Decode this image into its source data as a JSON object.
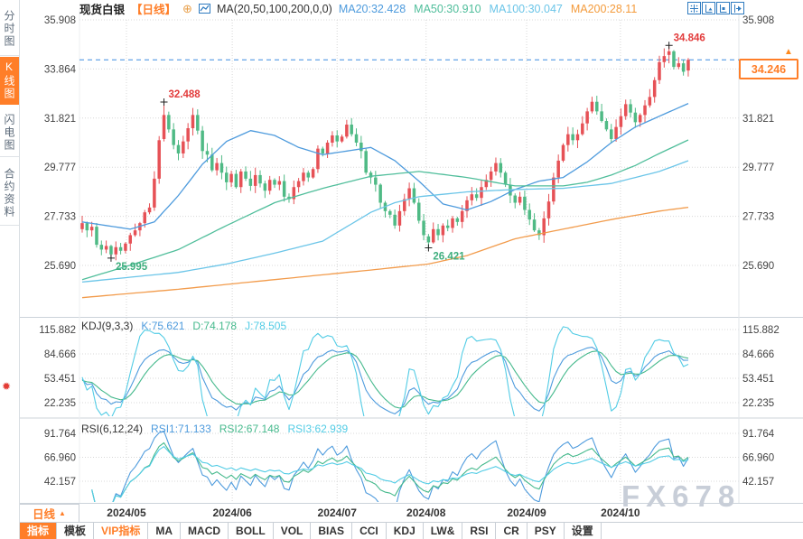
{
  "header": {
    "symbol": "现货白银",
    "period_tag": "【日线】",
    "ma_label": "MA(20,50,100,200,0,0)",
    "ma_values": [
      {
        "text": "MA20:32.428",
        "color": "#4E9BDD"
      },
      {
        "text": "MA50:30.910",
        "color": "#50BE9B"
      },
      {
        "text": "MA100:30.047",
        "color": "#6BC5E8"
      },
      {
        "text": "MA200:28.11",
        "color": "#F49B3C"
      }
    ]
  },
  "icons": {
    "plus_icon": "⊕",
    "alert_icon": "✹",
    "price_up_arrow": "▲",
    "period_dropdown_arrow": "▲"
  },
  "sidebar": {
    "items": [
      {
        "label": "分时图",
        "active": false
      },
      {
        "label": "K线图",
        "active": true
      },
      {
        "label": "闪电图",
        "active": false
      },
      {
        "label": "合约资料",
        "active": false
      }
    ]
  },
  "price_box": {
    "value": "34.246"
  },
  "watermark": "FX678",
  "xaxis": {
    "period_label": "日线"
  },
  "toolbar": {
    "items": [
      {
        "label": "指标",
        "state": "active"
      },
      {
        "label": "模板",
        "state": "normal"
      },
      {
        "label": "VIP指标",
        "state": "accent"
      },
      {
        "label": "MA",
        "state": "normal"
      },
      {
        "label": "MACD",
        "state": "normal"
      },
      {
        "label": "BOLL",
        "state": "normal"
      },
      {
        "label": "VOL",
        "state": "normal"
      },
      {
        "label": "BIAS",
        "state": "normal"
      },
      {
        "label": "CCI",
        "state": "normal"
      },
      {
        "label": "KDJ",
        "state": "normal"
      },
      {
        "label": "LW&",
        "state": "normal"
      },
      {
        "label": "RSI",
        "state": "normal"
      },
      {
        "label": "CR",
        "state": "normal"
      },
      {
        "label": "PSY",
        "state": "normal"
      },
      {
        "label": "设置",
        "state": "normal"
      }
    ]
  },
  "chart_data": {
    "type": "candlestick",
    "title": "现货白银 日线",
    "y_axis_ticks": [
      "35.908",
      "33.864",
      "31.821",
      "29.777",
      "27.733",
      "25.690"
    ],
    "x_axis": {
      "labels": [
        "2024/05",
        "2024/06",
        "2024/07",
        "2024/08",
        "2024/09",
        "2024/10"
      ],
      "candle_indices": [
        9.2,
        31.2,
        53,
        71.5,
        92.4,
        111.9
      ]
    },
    "last_price": 34.246,
    "candles": {
      "first_open": 27.2,
      "closes": [
        27.45,
        27.15,
        27.3,
        26.55,
        26.35,
        26.5,
        26.15,
        26.45,
        26.3,
        26.6,
        26.95,
        27.15,
        27.45,
        27.9,
        28.1,
        29.3,
        30.9,
        31.95,
        31.35,
        30.7,
        30.35,
        30.85,
        31.4,
        31.95,
        31.3,
        30.45,
        30.3,
        29.65,
        29.95,
        29.55,
        29.15,
        29.5,
        28.95,
        29.6,
        29.3,
        29.0,
        29.45,
        29.1,
        28.8,
        29.25,
        29.05,
        29.2,
        28.55,
        28.45,
        28.95,
        29.2,
        29.55,
        29.35,
        29.7,
        30.55,
        30.35,
        30.8,
        31.1,
        30.85,
        31.05,
        31.55,
        31.15,
        30.8,
        30.45,
        29.55,
        29.35,
        29.05,
        28.3,
        27.95,
        27.8,
        27.35,
        27.95,
        28.45,
        28.9,
        28.3,
        27.55,
        26.95,
        26.65,
        27.2,
        26.95,
        27.35,
        27.25,
        27.65,
        27.5,
        27.95,
        28.4,
        28.65,
        28.5,
        28.95,
        29.25,
        29.6,
        29.95,
        29.55,
        29.05,
        28.6,
        28.3,
        28.55,
        28.0,
        27.6,
        27.15,
        26.95,
        27.65,
        28.35,
        29.35,
        30.05,
        30.7,
        31.15,
        30.9,
        31.15,
        31.6,
        32.1,
        32.5,
        32.1,
        31.7,
        31.35,
        30.95,
        31.45,
        31.9,
        32.4,
        32.05,
        31.65,
        31.95,
        32.35,
        32.7,
        33.4,
        34.15,
        34.4,
        34.6,
        33.95,
        34.1,
        33.75,
        34.246
      ],
      "ohlc_overrides": {
        "6": [
          26.5,
          26.55,
          25.995,
          26.15
        ],
        "17": [
          30.95,
          32.488,
          30.85,
          31.95
        ],
        "72": [
          26.9,
          27.0,
          26.421,
          26.65
        ],
        "95": [
          27.15,
          27.25,
          26.75,
          26.95
        ],
        "122": [
          34.45,
          34.846,
          34.1,
          34.6
        ],
        "126": [
          33.8,
          34.32,
          33.55,
          34.246
        ]
      }
    },
    "annotations": [
      {
        "index": 6,
        "price": 25.995,
        "kind": "low",
        "label": "25.995"
      },
      {
        "index": 17,
        "price": 32.488,
        "kind": "high",
        "label": "32.488"
      },
      {
        "index": 72,
        "price": 26.421,
        "kind": "low",
        "label": "26.421"
      },
      {
        "index": 122,
        "price": 34.846,
        "kind": "high",
        "label": "34.846"
      }
    ],
    "ma_lines": {
      "ma20": {
        "color": "#4E9BDD",
        "points": [
          [
            0,
            27.5
          ],
          [
            5,
            27.35
          ],
          [
            10,
            27.2
          ],
          [
            15,
            27.5
          ],
          [
            20,
            28.6
          ],
          [
            25,
            29.9
          ],
          [
            30,
            30.85
          ],
          [
            35,
            31.3
          ],
          [
            40,
            31.1
          ],
          [
            45,
            30.6
          ],
          [
            50,
            30.3
          ],
          [
            55,
            30.45
          ],
          [
            60,
            30.6
          ],
          [
            65,
            30.05
          ],
          [
            70,
            29.2
          ],
          [
            75,
            28.25
          ],
          [
            80,
            28.0
          ],
          [
            85,
            28.35
          ],
          [
            90,
            28.85
          ],
          [
            95,
            29.2
          ],
          [
            100,
            29.35
          ],
          [
            105,
            30.0
          ],
          [
            110,
            30.8
          ],
          [
            115,
            31.45
          ],
          [
            120,
            31.9
          ],
          [
            126,
            32.428
          ]
        ]
      },
      "ma50": {
        "color": "#50BE9B",
        "points": [
          [
            0,
            25.1
          ],
          [
            10,
            25.7
          ],
          [
            20,
            26.35
          ],
          [
            30,
            27.35
          ],
          [
            40,
            28.3
          ],
          [
            50,
            28.9
          ],
          [
            60,
            29.4
          ],
          [
            70,
            29.6
          ],
          [
            80,
            29.35
          ],
          [
            90,
            29.0
          ],
          [
            100,
            29.0
          ],
          [
            105,
            29.15
          ],
          [
            110,
            29.45
          ],
          [
            115,
            29.85
          ],
          [
            120,
            30.35
          ],
          [
            126,
            30.91
          ]
        ]
      },
      "ma100": {
        "color": "#6BC5E8",
        "points": [
          [
            0,
            25.0
          ],
          [
            10,
            25.2
          ],
          [
            20,
            25.4
          ],
          [
            30,
            25.75
          ],
          [
            40,
            26.2
          ],
          [
            50,
            26.7
          ],
          [
            55,
            27.3
          ],
          [
            60,
            27.9
          ],
          [
            65,
            28.3
          ],
          [
            70,
            28.55
          ],
          [
            80,
            28.75
          ],
          [
            90,
            28.85
          ],
          [
            100,
            28.9
          ],
          [
            110,
            29.1
          ],
          [
            120,
            29.6
          ],
          [
            126,
            30.047
          ]
        ]
      },
      "ma200": {
        "color": "#F29B4B",
        "points": [
          [
            0,
            24.35
          ],
          [
            20,
            24.7
          ],
          [
            40,
            25.1
          ],
          [
            60,
            25.5
          ],
          [
            72,
            25.75
          ],
          [
            80,
            26.1
          ],
          [
            90,
            26.8
          ],
          [
            100,
            27.2
          ],
          [
            110,
            27.6
          ],
          [
            120,
            27.95
          ],
          [
            126,
            28.11
          ]
        ]
      }
    },
    "kdj": {
      "label": "KDJ(9,3,3)",
      "params": [
        9,
        3,
        3
      ],
      "ticks": [
        "115.882",
        "84.666",
        "53.451",
        "22.235"
      ],
      "values": [
        {
          "text": "K:75.621",
          "color": "#4E9BDD"
        },
        {
          "text": "D:74.178",
          "color": "#45B98C"
        },
        {
          "text": "J:78.505",
          "color": "#52CCE5"
        }
      ]
    },
    "rsi": {
      "label": "RSI(6,12,24)",
      "params": [
        6,
        12,
        24
      ],
      "ticks": [
        "91.764",
        "66.960",
        "42.157"
      ],
      "values": [
        {
          "text": "RSI1:71.133",
          "color": "#4E9BDD"
        },
        {
          "text": "RSI2:67.148",
          "color": "#45B98C"
        },
        {
          "text": "RSI3:62.939",
          "color": "#52CCE5"
        }
      ]
    },
    "colors": {
      "up": "#E65156",
      "down": "#4FBA85",
      "grid": "#d8d8d8",
      "divider": "#ccd3da",
      "accent": "#FF7E28",
      "last_price_line": "#3C8EE0",
      "annotation_high": "#E23B3B",
      "annotation_low": "#3FAE7E",
      "axis_text": "#444444",
      "month_text": "#333333"
    }
  }
}
